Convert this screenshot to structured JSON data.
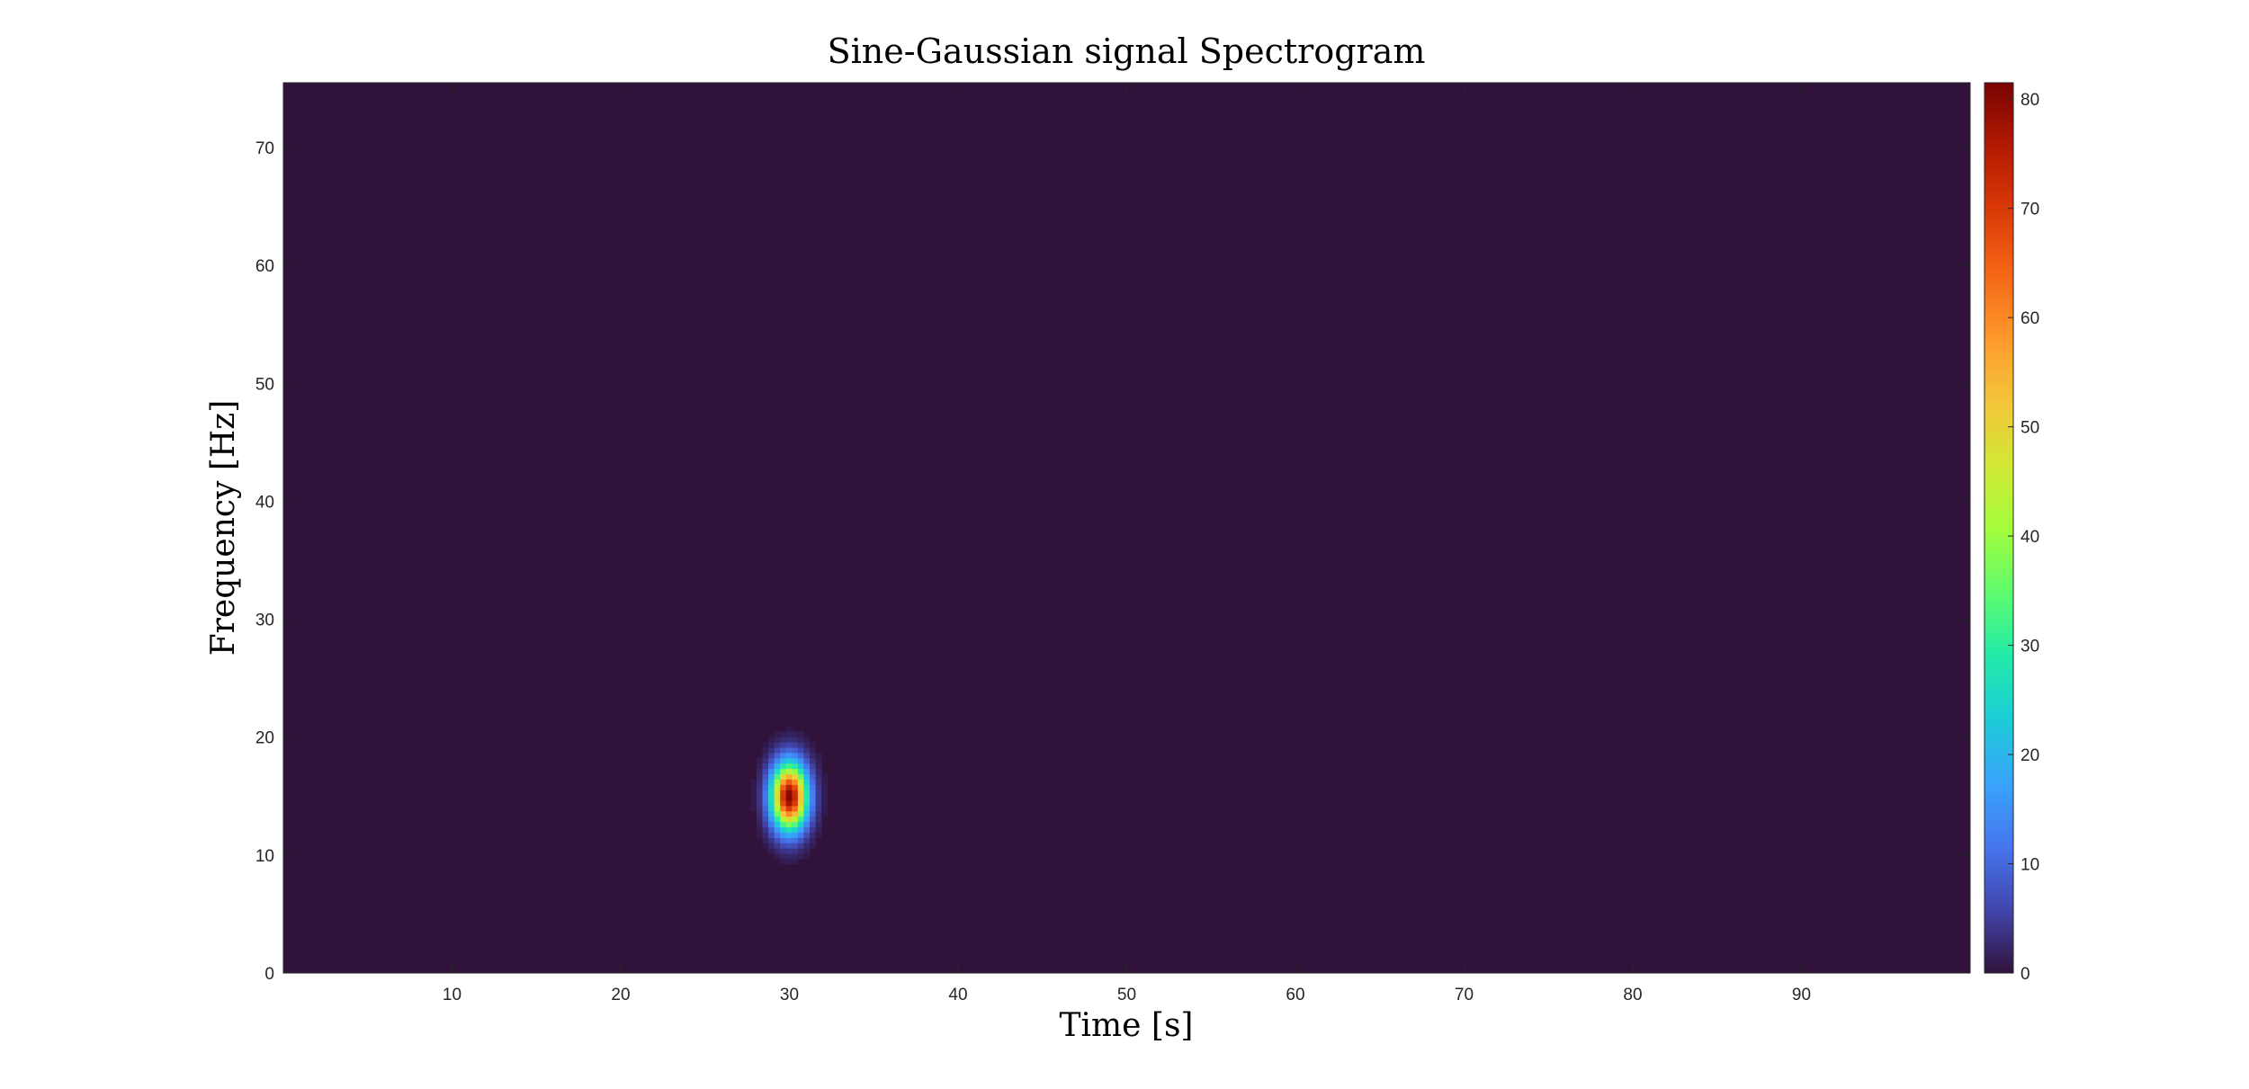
{
  "chart_data": {
    "type": "heatmap",
    "title": "Sine-Gaussian signal Spectrogram",
    "xlabel": "Time [s]",
    "ylabel": "Frequency [Hz]",
    "xlim": [
      0,
      100
    ],
    "ylim": [
      0,
      75.5
    ],
    "xticks": [
      10,
      20,
      30,
      40,
      50,
      60,
      70,
      80,
      90
    ],
    "yticks": [
      0,
      10,
      20,
      30,
      40,
      50,
      60,
      70
    ],
    "colormap": "turbo",
    "background_color": "#30123b",
    "colorbar": {
      "range": [
        0,
        81.5
      ],
      "ticks": [
        0,
        10,
        20,
        30,
        40,
        50,
        60,
        70,
        80
      ]
    },
    "peak": {
      "time": 30,
      "frequency": 15,
      "value": 81
    },
    "grid": false,
    "legend": "none"
  }
}
